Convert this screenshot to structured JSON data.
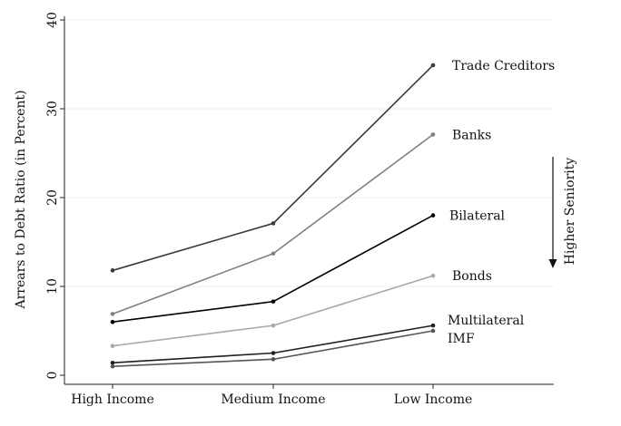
{
  "chart_data": {
    "type": "line",
    "title": "",
    "xlabel": "",
    "ylabel": "Arrears to Debt Ratio (in Percent)",
    "categories": [
      "High Income",
      "Medium Income",
      "Low Income"
    ],
    "ylim": [
      0,
      40
    ],
    "yticks": [
      0,
      10,
      20,
      30,
      40
    ],
    "grid": "horizontal",
    "legend": "none (series labeled at line ends)",
    "annotation": "Higher Seniority",
    "series": [
      {
        "name": "Trade Creditors",
        "values": [
          11.8,
          17.1,
          34.9
        ],
        "color": "#3a3a3a"
      },
      {
        "name": "Banks",
        "values": [
          6.9,
          13.7,
          27.1
        ],
        "color": "#808080"
      },
      {
        "name": "Bilateral",
        "values": [
          6.0,
          8.3,
          18.0
        ],
        "color": "#000000"
      },
      {
        "name": "Bonds",
        "values": [
          3.3,
          5.6,
          11.2
        ],
        "color": "#a8a8a8"
      },
      {
        "name": "Multilateral",
        "values": [
          1.4,
          2.5,
          5.6
        ],
        "color": "#202020"
      },
      {
        "name": "IMF",
        "values": [
          1.0,
          1.8,
          5.0
        ],
        "color": "#555555"
      }
    ]
  }
}
